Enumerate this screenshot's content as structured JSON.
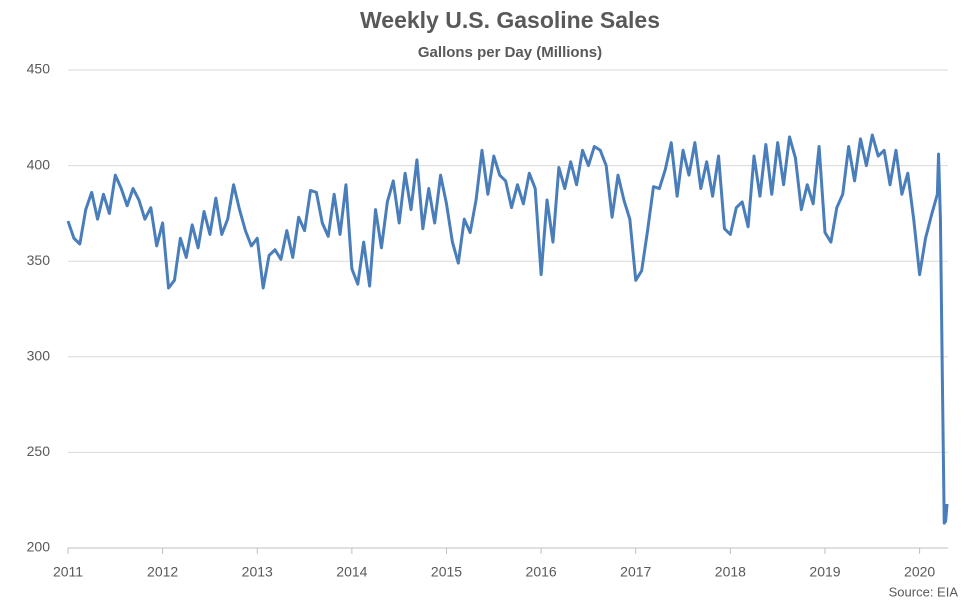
{
  "chart_data": {
    "type": "line",
    "title": "Weekly U.S. Gasoline Sales",
    "subtitle": "Gallons per Day (Millions)",
    "source": "Source: EIA",
    "x": [
      2011,
      2011.0625,
      2011.125,
      2011.1875,
      2011.25,
      2011.3125,
      2011.375,
      2011.4375,
      2011.5,
      2011.5625,
      2011.625,
      2011.6875,
      2011.75,
      2011.8125,
      2011.875,
      2011.9375,
      2012,
      2012.0625,
      2012.125,
      2012.1875,
      2012.25,
      2012.3125,
      2012.375,
      2012.4375,
      2012.5,
      2012.5625,
      2012.625,
      2012.6875,
      2012.75,
      2012.8125,
      2012.875,
      2012.9375,
      2013,
      2013.0625,
      2013.125,
      2013.1875,
      2013.25,
      2013.3125,
      2013.375,
      2013.4375,
      2013.5,
      2013.5625,
      2013.625,
      2013.6875,
      2013.75,
      2013.8125,
      2013.875,
      2013.9375,
      2014,
      2014.0625,
      2014.125,
      2014.1875,
      2014.25,
      2014.3125,
      2014.375,
      2014.4375,
      2014.5,
      2014.5625,
      2014.625,
      2014.6875,
      2014.75,
      2014.8125,
      2014.875,
      2014.9375,
      2015,
      2015.0625,
      2015.125,
      2015.1875,
      2015.25,
      2015.3125,
      2015.375,
      2015.4375,
      2015.5,
      2015.5625,
      2015.625,
      2015.6875,
      2015.75,
      2015.8125,
      2015.875,
      2015.9375,
      2016,
      2016.0625,
      2016.125,
      2016.1875,
      2016.25,
      2016.3125,
      2016.375,
      2016.4375,
      2016.5,
      2016.5625,
      2016.625,
      2016.6875,
      2016.75,
      2016.8125,
      2016.875,
      2016.9375,
      2017,
      2017.0625,
      2017.125,
      2017.1875,
      2017.25,
      2017.3125,
      2017.375,
      2017.4375,
      2017.5,
      2017.5625,
      2017.625,
      2017.6875,
      2017.75,
      2017.8125,
      2017.875,
      2017.9375,
      2018,
      2018.0625,
      2018.125,
      2018.1875,
      2018.25,
      2018.3125,
      2018.375,
      2018.4375,
      2018.5,
      2018.5625,
      2018.625,
      2018.6875,
      2018.75,
      2018.8125,
      2018.875,
      2018.9375,
      2019,
      2019.0625,
      2019.125,
      2019.1875,
      2019.25,
      2019.3125,
      2019.375,
      2019.4375,
      2019.5,
      2019.5625,
      2019.625,
      2019.6875,
      2019.75,
      2019.8125,
      2019.875,
      2019.9375,
      2020,
      2020.0625,
      2020.125,
      2020.1875,
      2020.2,
      2020.22,
      2020.24,
      2020.26,
      2020.275,
      2020.29
    ],
    "values": [
      371,
      362,
      359,
      377,
      386,
      372,
      385,
      375,
      395,
      388,
      379,
      388,
      382,
      372,
      378,
      358,
      370,
      336,
      340,
      362,
      352,
      369,
      357,
      376,
      364,
      383,
      364,
      372,
      390,
      377,
      366,
      358,
      362,
      336,
      353,
      356,
      351,
      366,
      352,
      373,
      366,
      387,
      386,
      370,
      363,
      385,
      364,
      390,
      346,
      338,
      360,
      337,
      377,
      357,
      381,
      392,
      370,
      396,
      377,
      403,
      367,
      388,
      370,
      395,
      380,
      360,
      349,
      372,
      365,
      382,
      408,
      385,
      405,
      395,
      392,
      378,
      390,
      380,
      396,
      388,
      343,
      382,
      360,
      399,
      388,
      402,
      390,
      408,
      400,
      410,
      408,
      400,
      373,
      395,
      382,
      372,
      340,
      345,
      366,
      389,
      388,
      398,
      412,
      384,
      408,
      395,
      412,
      388,
      402,
      384,
      405,
      367,
      364,
      378,
      381,
      368,
      405,
      384,
      411,
      385,
      412,
      390,
      415,
      404,
      377,
      390,
      380,
      410,
      365,
      360,
      378,
      385,
      410,
      392,
      414,
      400,
      416,
      405,
      408,
      390,
      408,
      385,
      396,
      372,
      343,
      362,
      374,
      385,
      406,
      372,
      290,
      213,
      214,
      223
    ],
    "color": "#4a7ebb",
    "xlim": [
      2011,
      2020.3
    ],
    "xticks": [
      2011,
      2012,
      2013,
      2014,
      2015,
      2016,
      2017,
      2018,
      2019,
      2020
    ],
    "ylim": [
      200,
      450
    ],
    "yticks": [
      200,
      250,
      300,
      350,
      400,
      450
    ],
    "grid": true
  }
}
